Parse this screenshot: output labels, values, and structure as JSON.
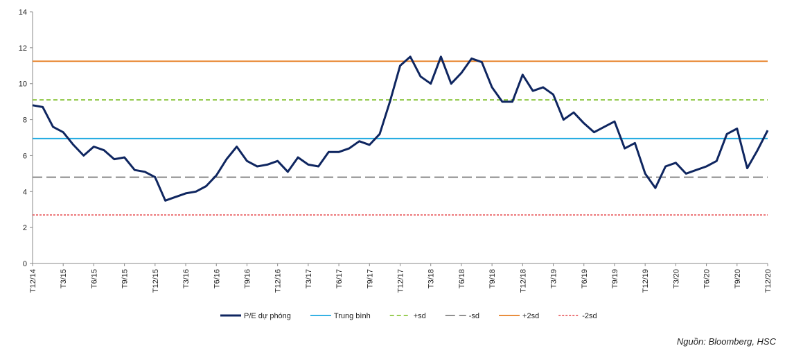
{
  "chart_data": {
    "type": "line",
    "categories": [
      "T12/14",
      null,
      null,
      "T3/15",
      null,
      null,
      "T6/15",
      null,
      null,
      "T9/15",
      null,
      null,
      "T12/15",
      null,
      null,
      "T3/16",
      null,
      null,
      "T6/16",
      null,
      null,
      "T9/16",
      null,
      null,
      "T12/16",
      null,
      null,
      "T3/17",
      null,
      null,
      "T6/17",
      null,
      null,
      "T9/17",
      null,
      null,
      "T12/17",
      null,
      null,
      "T3/18",
      null,
      null,
      "T6/18",
      null,
      null,
      "T9/18",
      null,
      null,
      "T12/18",
      null,
      null,
      "T3/19",
      null,
      null,
      "T6/19",
      null,
      null,
      "T9/19",
      null,
      null,
      "T12/19",
      null,
      null,
      "T3/20",
      null,
      null,
      "T6/20",
      null,
      null,
      "T9/20",
      null,
      null,
      "T12/20"
    ],
    "series": [
      {
        "name": "P/E dự phóng",
        "color": "#0f2660",
        "values": [
          8.8,
          8.7,
          7.6,
          7.3,
          6.6,
          6.0,
          6.5,
          6.3,
          5.8,
          5.9,
          5.2,
          5.1,
          4.8,
          3.5,
          3.7,
          3.9,
          4.0,
          4.3,
          4.9,
          5.8,
          6.5,
          5.7,
          5.4,
          5.5,
          5.7,
          5.1,
          5.9,
          5.5,
          5.4,
          6.2,
          6.2,
          6.4,
          6.8,
          6.6,
          7.2,
          9.0,
          11.0,
          11.5,
          10.4,
          10.0,
          11.5,
          10.0,
          10.6,
          11.4,
          11.2,
          9.8,
          9.0,
          9.0,
          10.5,
          9.6,
          9.8,
          9.4,
          8.0,
          8.4,
          7.8,
          7.3,
          7.6,
          7.9,
          6.4,
          6.7,
          5.0,
          4.2,
          5.4,
          5.6,
          5.0,
          5.2,
          5.4,
          5.7,
          7.2,
          7.5,
          5.3,
          6.3,
          7.4
        ]
      }
    ],
    "reference_lines": [
      {
        "name": "Trung bình",
        "value": 6.95,
        "color": "#1aa7e0",
        "dash": "solid"
      },
      {
        "name": "+sd",
        "value": 9.1,
        "color": "#8cc63f",
        "dash": "dashed"
      },
      {
        "name": "-sd",
        "value": 4.8,
        "color": "#808080",
        "dash": "longdash"
      },
      {
        "name": "+2sd",
        "value": 11.25,
        "color": "#e67e22",
        "dash": "solid"
      },
      {
        "name": "-2sd",
        "value": 2.7,
        "color": "#e0262b",
        "dash": "dotted"
      }
    ],
    "ylim": [
      0,
      14
    ],
    "yticks": [
      0,
      2,
      4,
      6,
      8,
      10,
      12,
      14
    ],
    "legend": "bottom",
    "source": "Nguồn: Bloomberg, HSC"
  }
}
